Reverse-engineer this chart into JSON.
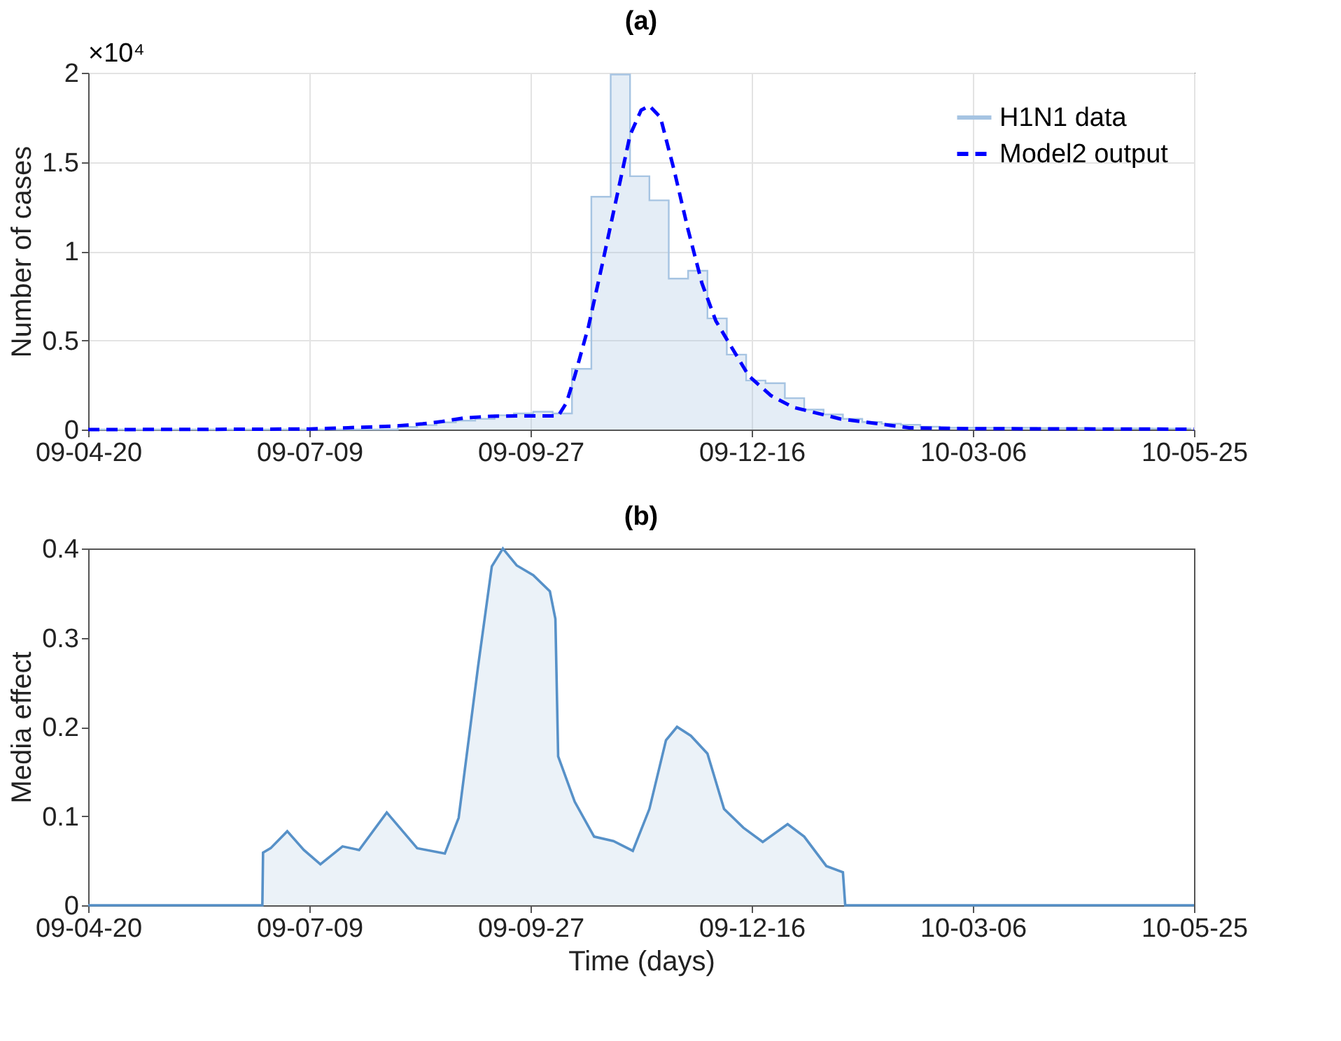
{
  "chart_data": [
    {
      "type": "step",
      "title": "(a)",
      "ylabel": "Number of cases",
      "annotations": [
        "×10⁴"
      ],
      "xlim": [
        "2009-04-20",
        "2010-05-25"
      ],
      "xticks": [
        {
          "value": "2009-04-20",
          "label": "09-04-20"
        },
        {
          "value": "2009-07-09",
          "label": "09-07-09"
        },
        {
          "value": "2009-09-27",
          "label": "09-09-27"
        },
        {
          "value": "2009-12-16",
          "label": "09-12-16"
        },
        {
          "value": "2010-03-06",
          "label": "10-03-06"
        },
        {
          "value": "2010-05-25",
          "label": "10-05-25"
        }
      ],
      "ylim": [
        0,
        2
      ],
      "yticks": [
        0,
        0.5,
        1,
        1.5,
        2
      ],
      "grid": true,
      "legend": "top right",
      "series": [
        {
          "name": "H1N1 data",
          "color": "#a6c4e2",
          "x": [
            "2009-04-20",
            "2009-04-27",
            "2009-05-04",
            "2009-05-11",
            "2009-05-18",
            "2009-05-25",
            "2009-06-01",
            "2009-06-08",
            "2009-06-15",
            "2009-06-22",
            "2009-06-29",
            "2009-07-06",
            "2009-07-13",
            "2009-07-20",
            "2009-07-27",
            "2009-08-03",
            "2009-08-10",
            "2009-08-17",
            "2009-08-24",
            "2009-08-31",
            "2009-09-07",
            "2009-09-14",
            "2009-09-21",
            "2009-09-28",
            "2009-10-05",
            "2009-10-12",
            "2009-10-19",
            "2009-10-26",
            "2009-11-02",
            "2009-11-09",
            "2009-11-16",
            "2009-11-23",
            "2009-11-30",
            "2009-12-07",
            "2009-12-14",
            "2009-12-21",
            "2009-12-28",
            "2010-01-04",
            "2010-01-11",
            "2010-01-18",
            "2010-01-25",
            "2010-02-01",
            "2010-02-08",
            "2010-02-15",
            "2010-02-22",
            "2010-03-01",
            "2010-03-08",
            "2010-03-15",
            "2010-03-22",
            "2010-03-29",
            "2010-04-05",
            "2010-04-12",
            "2010-04-19",
            "2010-04-26",
            "2010-05-03",
            "2010-05-10",
            "2010-05-17",
            "2010-05-24"
          ],
          "values": [
            0,
            0,
            0,
            0,
            0,
            0,
            0,
            0,
            0,
            0,
            0,
            0,
            0,
            0,
            0,
            0,
            0.015,
            0.025,
            0.04,
            0.05,
            0.06,
            0.08,
            0.09,
            0.1,
            0.09,
            0.34,
            1.305,
            1.99,
            1.42,
            1.285,
            0.846,
            0.89,
            0.623,
            0.42,
            0.275,
            0.26,
            0.176,
            0.112,
            0.085,
            0.06,
            0.042,
            0.033,
            0.027,
            0.016,
            0.01,
            0.01,
            0.01,
            0.01,
            0.01,
            0.008,
            0.008,
            0.008,
            0.006,
            0.006,
            0.006,
            0.005,
            0.005,
            0.005
          ]
        },
        {
          "name": "Model2 output",
          "type": "line",
          "color": "#0000ff",
          "line_style": "dashed",
          "x": [
            "2009-04-20",
            "2009-05-30",
            "2009-07-09",
            "2009-07-23",
            "2009-08-09",
            "2009-08-19",
            "2009-08-26",
            "2009-09-03",
            "2009-09-13",
            "2009-09-22",
            "2009-10-07",
            "2009-10-10",
            "2009-10-13",
            "2009-10-18",
            "2009-10-23",
            "2009-10-28",
            "2009-11-02",
            "2009-11-06",
            "2009-11-09",
            "2009-11-13",
            "2009-11-18",
            "2009-11-23",
            "2009-11-28",
            "2009-12-03",
            "2009-12-08",
            "2009-12-15",
            "2009-12-23",
            "2009-12-31",
            "2010-01-17",
            "2010-02-11",
            "2010-03-06",
            "2010-05-25"
          ],
          "values": [
            0,
            0.001,
            0.003,
            0.01,
            0.02,
            0.032,
            0.045,
            0.065,
            0.075,
            0.076,
            0.076,
            0.15,
            0.3,
            0.58,
            0.93,
            1.29,
            1.65,
            1.79,
            1.815,
            1.75,
            1.45,
            1.12,
            0.82,
            0.61,
            0.48,
            0.3,
            0.19,
            0.125,
            0.06,
            0.01,
            0.005,
            0.002
          ]
        }
      ]
    },
    {
      "type": "area",
      "title": "(b)",
      "xlabel": "Time (days)",
      "ylabel": "Media effect",
      "xlim": [
        "2009-04-20",
        "2010-05-25"
      ],
      "xticks": [
        {
          "value": "2009-04-20",
          "label": "09-04-20"
        },
        {
          "value": "2009-07-09",
          "label": "09-07-09"
        },
        {
          "value": "2009-09-27",
          "label": "09-09-27"
        },
        {
          "value": "2009-12-16",
          "label": "09-12-16"
        },
        {
          "value": "2010-03-06",
          "label": "10-03-06"
        },
        {
          "value": "2010-05-25",
          "label": "10-05-25"
        }
      ],
      "ylim": [
        0,
        0.4
      ],
      "yticks": [
        0,
        0.1,
        0.2,
        0.3,
        0.4
      ],
      "series": [
        {
          "color": "#5791c8",
          "x": [
            "2009-04-20",
            "2009-06-22",
            "2009-06-22T06:00",
            "2009-06-25",
            "2009-07-01",
            "2009-07-07",
            "2009-07-13",
            "2009-07-21",
            "2009-07-27",
            "2009-08-06",
            "2009-08-17",
            "2009-08-27",
            "2009-09-01",
            "2009-09-08",
            "2009-09-13",
            "2009-09-17",
            "2009-09-22",
            "2009-09-28",
            "2009-10-04",
            "2009-10-06",
            "2009-10-07",
            "2009-10-13",
            "2009-10-20",
            "2009-10-27",
            "2009-11-03",
            "2009-11-09",
            "2009-11-15",
            "2009-11-19",
            "2009-11-24",
            "2009-11-30",
            "2009-12-06",
            "2009-12-13",
            "2009-12-20",
            "2009-12-29",
            "2010-01-04",
            "2010-01-12",
            "2010-01-18",
            "2010-01-18T20:00",
            "2010-05-25"
          ],
          "values": [
            0,
            0,
            0.059,
            0.064,
            0.083,
            0.062,
            0.046,
            0.066,
            0.062,
            0.104,
            0.064,
            0.058,
            0.098,
            0.267,
            0.38,
            0.4,
            0.381,
            0.37,
            0.352,
            0.321,
            0.167,
            0.116,
            0.077,
            0.072,
            0.061,
            0.108,
            0.185,
            0.2,
            0.19,
            0.17,
            0.108,
            0.087,
            0.071,
            0.091,
            0.077,
            0.044,
            0.037,
            0,
            0
          ]
        }
      ]
    }
  ]
}
